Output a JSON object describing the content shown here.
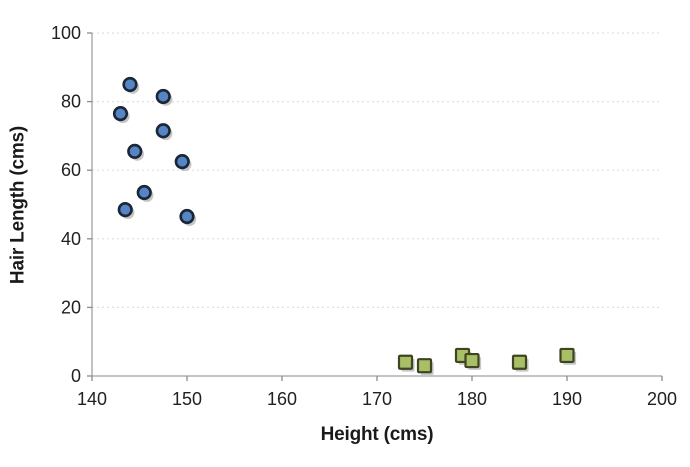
{
  "chart_data": {
    "type": "scatter",
    "title": "",
    "xlabel": "Height (cms)",
    "ylabel": "Hair Length (cms)",
    "xlim": [
      140,
      200
    ],
    "ylim": [
      0,
      100
    ],
    "x_ticks": [
      140,
      150,
      160,
      170,
      180,
      190,
      200
    ],
    "y_ticks": [
      0,
      20,
      40,
      60,
      80,
      100
    ],
    "grid": "horizontal-dashed",
    "legend": "none",
    "series": [
      {
        "name": "circles",
        "marker": "circle",
        "fill": "#5585C4",
        "stroke": "#1B2637",
        "points": [
          [
            144,
            85
          ],
          [
            147.5,
            81.5
          ],
          [
            143,
            76.5
          ],
          [
            147.5,
            71.5
          ],
          [
            144.5,
            65.5
          ],
          [
            149.5,
            62.5
          ],
          [
            145.5,
            53.5
          ],
          [
            143.5,
            48.5
          ],
          [
            150,
            46.5
          ]
        ]
      },
      {
        "name": "squares",
        "marker": "square",
        "fill": "#A9BF66",
        "stroke": "#3F4422",
        "points": [
          [
            173,
            4
          ],
          [
            175,
            3
          ],
          [
            179,
            6
          ],
          [
            180,
            4.5
          ],
          [
            185,
            4
          ],
          [
            190,
            6
          ]
        ]
      }
    ],
    "colors": {
      "background": "#FFFFFF",
      "axis_line": "#A0A0A0",
      "tick_mark": "#8C8C8C",
      "gridline": "#E2DFDF",
      "tick_label": "#212121",
      "axis_title": "#1A1A1A",
      "marker_shadow": "rgba(128,128,128,0.45)"
    }
  }
}
